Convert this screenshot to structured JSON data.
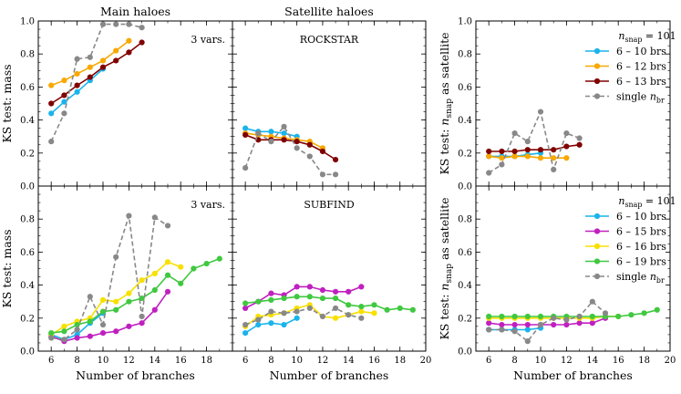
{
  "chart_data": [
    {
      "id": "main_rockstar",
      "type": "line",
      "title": "Main haloes",
      "annotation": "3 vars.",
      "ylabel": "KS test: mass",
      "xlabel": "",
      "xlim": [
        5,
        20
      ],
      "ylim": [
        0,
        1.0
      ],
      "xticks": [
        6,
        8,
        10,
        12,
        14,
        16,
        18,
        20
      ],
      "yticks": [
        0.0,
        0.2,
        0.4,
        0.6,
        0.8,
        1.0
      ],
      "series": [
        {
          "name": "6 – 10 brs",
          "color": "#1ab4ec",
          "dashed": false,
          "x": [
            6,
            7,
            8,
            9,
            10
          ],
          "y": [
            0.44,
            0.51,
            0.57,
            0.64,
            0.71
          ]
        },
        {
          "name": "6 – 12 brs",
          "color": "#f8a800",
          "dashed": false,
          "x": [
            6,
            7,
            8,
            9,
            10,
            11,
            12
          ],
          "y": [
            0.61,
            0.64,
            0.68,
            0.72,
            0.76,
            0.82,
            0.88
          ]
        },
        {
          "name": "6 – 13 brs",
          "color": "#800000",
          "dashed": false,
          "x": [
            6,
            7,
            8,
            9,
            10,
            11,
            12,
            13
          ],
          "y": [
            0.5,
            0.55,
            0.61,
            0.66,
            0.72,
            0.76,
            0.81,
            0.87
          ]
        },
        {
          "name": "single n_br",
          "color": "#888888",
          "dashed": true,
          "x": [
            6,
            7,
            8,
            9,
            10,
            11,
            12,
            13
          ],
          "y": [
            0.27,
            0.44,
            0.77,
            0.78,
            0.98,
            0.98,
            0.98,
            0.96
          ]
        }
      ]
    },
    {
      "id": "sat_rockstar",
      "type": "line",
      "title": "Satellite haloes",
      "annotation": "ROCKSTAR",
      "ylabel": "",
      "xlabel": "",
      "xlim": [
        5,
        20
      ],
      "ylim": [
        0,
        1.0
      ],
      "xticks": [
        6,
        8,
        10,
        12,
        14,
        16,
        18,
        20
      ],
      "yticks": [
        0.0,
        0.2,
        0.4,
        0.6,
        0.8,
        1.0
      ],
      "series": [
        {
          "name": "6 – 10 brs",
          "color": "#1ab4ec",
          "dashed": false,
          "x": [
            6,
            7,
            8,
            9,
            10
          ],
          "y": [
            0.35,
            0.33,
            0.33,
            0.32,
            0.3
          ]
        },
        {
          "name": "6 – 12 brs",
          "color": "#f8a800",
          "dashed": false,
          "x": [
            6,
            7,
            8,
            9,
            10,
            11,
            12
          ],
          "y": [
            0.32,
            0.31,
            0.3,
            0.29,
            0.28,
            0.27,
            0.23
          ]
        },
        {
          "name": "6 – 13 brs",
          "color": "#800000",
          "dashed": false,
          "x": [
            6,
            7,
            8,
            9,
            10,
            11,
            12,
            13
          ],
          "y": [
            0.31,
            0.28,
            0.28,
            0.28,
            0.27,
            0.25,
            0.21,
            0.16
          ]
        },
        {
          "name": "single n_br",
          "color": "#888888",
          "dashed": true,
          "x": [
            6,
            7,
            8,
            9,
            10,
            11,
            12,
            13
          ],
          "y": [
            0.11,
            0.32,
            0.27,
            0.36,
            0.23,
            0.18,
            0.07,
            0.07
          ]
        }
      ]
    },
    {
      "id": "sat_count_rockstar",
      "type": "line",
      "title": "",
      "annotation": "",
      "ylabel": "KS test: n_snap as satellite",
      "xlabel": "",
      "xlim": [
        5,
        20
      ],
      "ylim": [
        0,
        1.0
      ],
      "xticks": [
        6,
        8,
        10,
        12,
        14,
        16,
        18,
        20
      ],
      "yticks": [
        0.0,
        0.2,
        0.4,
        0.6,
        0.8,
        1.0
      ],
      "legend": {
        "title": "n_snap = 101",
        "position": "upper right"
      },
      "series": [
        {
          "name": "6 – 10 brs",
          "color": "#1ab4ec",
          "dashed": false,
          "x": [
            6,
            7,
            8,
            9,
            10
          ],
          "y": [
            0.18,
            0.18,
            0.18,
            0.19,
            0.2
          ]
        },
        {
          "name": "6 – 12 brs",
          "color": "#f8a800",
          "dashed": false,
          "x": [
            6,
            7,
            8,
            9,
            10,
            11,
            12
          ],
          "y": [
            0.18,
            0.17,
            0.18,
            0.18,
            0.17,
            0.17,
            0.17
          ]
        },
        {
          "name": "6 – 13 brs",
          "color": "#800000",
          "dashed": false,
          "x": [
            6,
            7,
            8,
            9,
            10,
            11,
            12,
            13
          ],
          "y": [
            0.21,
            0.21,
            0.21,
            0.22,
            0.22,
            0.22,
            0.24,
            0.25
          ]
        },
        {
          "name": "single n_br",
          "color": "#888888",
          "dashed": true,
          "x": [
            6,
            7,
            8,
            9,
            10,
            11,
            12,
            13
          ],
          "y": [
            0.08,
            0.13,
            0.32,
            0.27,
            0.45,
            0.1,
            0.32,
            0.29
          ]
        }
      ]
    },
    {
      "id": "main_subfind",
      "type": "line",
      "title": "",
      "annotation": "3 vars.",
      "ylabel": "KS test: mass",
      "xlabel": "Number of branches",
      "xlim": [
        5,
        20
      ],
      "ylim": [
        0,
        1.0
      ],
      "xticks": [
        6,
        8,
        10,
        12,
        14,
        16,
        18,
        20
      ],
      "yticks": [
        0.0,
        0.2,
        0.4,
        0.6,
        0.8
      ],
      "series": [
        {
          "name": "6 – 10 brs",
          "color": "#1ab4ec",
          "dashed": false,
          "x": [
            6,
            7,
            8,
            9,
            10
          ],
          "y": [
            0.1,
            0.07,
            0.1,
            0.17,
            0.23
          ]
        },
        {
          "name": "6 – 15 brs",
          "color": "#c020c0",
          "dashed": false,
          "x": [
            6,
            7,
            8,
            9,
            10,
            11,
            12,
            13,
            14,
            15
          ],
          "y": [
            0.09,
            0.06,
            0.08,
            0.09,
            0.11,
            0.12,
            0.15,
            0.17,
            0.25,
            0.36
          ]
        },
        {
          "name": "6 – 16 brs",
          "color": "#f8e000",
          "dashed": false,
          "x": [
            6,
            7,
            8,
            9,
            10,
            11,
            12,
            13,
            14,
            15,
            16
          ],
          "y": [
            0.1,
            0.15,
            0.18,
            0.2,
            0.31,
            0.3,
            0.35,
            0.43,
            0.47,
            0.54,
            0.51
          ]
        },
        {
          "name": "6 – 19 brs",
          "color": "#40c840",
          "dashed": false,
          "x": [
            6,
            7,
            8,
            9,
            10,
            11,
            12,
            13,
            14,
            15,
            16,
            17,
            18,
            19
          ],
          "y": [
            0.11,
            0.12,
            0.16,
            0.18,
            0.24,
            0.25,
            0.3,
            0.32,
            0.37,
            0.46,
            0.41,
            0.5,
            0.53,
            0.56
          ]
        },
        {
          "name": "single n_br",
          "color": "#888888",
          "dashed": true,
          "x": [
            6,
            7,
            8,
            9,
            10,
            11,
            12,
            13,
            14,
            15
          ],
          "y": [
            0.08,
            0.07,
            0.13,
            0.33,
            0.16,
            0.57,
            0.82,
            0.21,
            0.81,
            0.76
          ]
        }
      ]
    },
    {
      "id": "sat_subfind",
      "type": "line",
      "title": "",
      "annotation": "SUBFIND",
      "ylabel": "",
      "xlabel": "Number of branches",
      "xlim": [
        5,
        20
      ],
      "ylim": [
        0,
        1.0
      ],
      "xticks": [
        6,
        8,
        10,
        12,
        14,
        16,
        18,
        20
      ],
      "yticks": [
        0.0,
        0.2,
        0.4,
        0.6,
        0.8
      ],
      "series": [
        {
          "name": "6 – 10 brs",
          "color": "#1ab4ec",
          "dashed": false,
          "x": [
            6,
            7,
            8,
            9,
            10
          ],
          "y": [
            0.11,
            0.16,
            0.17,
            0.16,
            0.2
          ]
        },
        {
          "name": "6 – 15 brs",
          "color": "#c020c0",
          "dashed": false,
          "x": [
            6,
            7,
            8,
            9,
            10,
            11,
            12,
            13,
            14,
            15
          ],
          "y": [
            0.26,
            0.3,
            0.35,
            0.34,
            0.39,
            0.39,
            0.37,
            0.36,
            0.36,
            0.39
          ]
        },
        {
          "name": "6 – 16 brs",
          "color": "#f8e000",
          "dashed": false,
          "x": [
            6,
            7,
            8,
            9,
            10,
            11,
            12,
            13,
            14,
            15,
            16
          ],
          "y": [
            0.15,
            0.21,
            0.22,
            0.23,
            0.26,
            0.28,
            0.21,
            0.2,
            0.22,
            0.24,
            0.23
          ]
        },
        {
          "name": "6 – 19 brs",
          "color": "#40c840",
          "dashed": false,
          "x": [
            6,
            7,
            8,
            9,
            10,
            11,
            12,
            13,
            14,
            15,
            16,
            17,
            18,
            19
          ],
          "y": [
            0.29,
            0.3,
            0.31,
            0.32,
            0.33,
            0.33,
            0.32,
            0.32,
            0.28,
            0.27,
            0.28,
            0.25,
            0.26,
            0.25
          ]
        },
        {
          "name": "single n_br",
          "color": "#888888",
          "dashed": true,
          "x": [
            6,
            7,
            8,
            9,
            10,
            11,
            12,
            13,
            14,
            15
          ],
          "y": [
            0.16,
            0.19,
            0.24,
            0.23,
            0.24,
            0.26,
            0.21,
            0.26,
            0.22,
            0.2
          ]
        }
      ]
    },
    {
      "id": "sat_count_subfind",
      "type": "line",
      "title": "",
      "annotation": "",
      "ylabel": "KS test: n_snap as satellite",
      "xlabel": "Number of branches",
      "xlim": [
        5,
        20
      ],
      "ylim": [
        0,
        1.0
      ],
      "xticks": [
        6,
        8,
        10,
        12,
        14,
        16,
        18,
        20
      ],
      "yticks": [
        0.0,
        0.2,
        0.4,
        0.6,
        0.8
      ],
      "legend": {
        "title": "n_snap = 101",
        "position": "upper right"
      },
      "series": [
        {
          "name": "6 – 10 brs",
          "color": "#1ab4ec",
          "dashed": false,
          "x": [
            6,
            7,
            8,
            9,
            10
          ],
          "y": [
            0.13,
            0.13,
            0.13,
            0.13,
            0.14
          ]
        },
        {
          "name": "6 – 15 brs",
          "color": "#c020c0",
          "dashed": false,
          "x": [
            6,
            7,
            8,
            9,
            10,
            11,
            12,
            13,
            14,
            15
          ],
          "y": [
            0.17,
            0.16,
            0.16,
            0.16,
            0.16,
            0.16,
            0.16,
            0.17,
            0.17,
            0.2
          ]
        },
        {
          "name": "6 – 16 brs",
          "color": "#f8e000",
          "dashed": false,
          "x": [
            6,
            7,
            8,
            9,
            10,
            11,
            12,
            13,
            14,
            15,
            16
          ],
          "y": [
            0.2,
            0.2,
            0.2,
            0.2,
            0.2,
            0.2,
            0.2,
            0.2,
            0.2,
            0.21,
            0.21
          ]
        },
        {
          "name": "6 – 19 brs",
          "color": "#40c840",
          "dashed": false,
          "x": [
            6,
            7,
            8,
            9,
            10,
            11,
            12,
            13,
            14,
            15,
            16,
            17,
            18,
            19
          ],
          "y": [
            0.21,
            0.21,
            0.21,
            0.21,
            0.21,
            0.21,
            0.21,
            0.21,
            0.21,
            0.21,
            0.21,
            0.22,
            0.23,
            0.25
          ]
        },
        {
          "name": "single n_br",
          "color": "#888888",
          "dashed": true,
          "x": [
            6,
            7,
            8,
            9,
            10,
            11,
            12,
            13,
            14,
            15
          ],
          "y": [
            0.13,
            0.13,
            0.12,
            0.06,
            0.16,
            0.2,
            0.19,
            0.21,
            0.3,
            0.23
          ]
        }
      ]
    }
  ]
}
